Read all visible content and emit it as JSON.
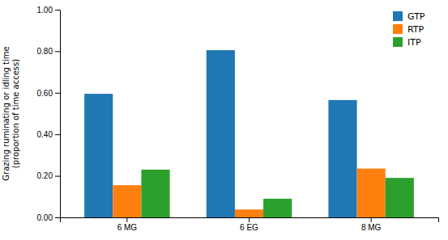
{
  "chart_data": {
    "type": "bar",
    "categories": [
      "6 MG",
      "6 EG",
      "8 MG"
    ],
    "series": [
      {
        "name": "GTP",
        "values": [
          0.595,
          0.805,
          0.565
        ]
      },
      {
        "name": "RTP",
        "values": [
          0.155,
          0.038,
          0.235
        ]
      },
      {
        "name": "ITP",
        "values": [
          0.23,
          0.09,
          0.19
        ]
      }
    ],
    "ylabel": "Grazing ruminating or idling time\n(proportion of time  access)",
    "ylim": [
      0.0,
      1.0
    ],
    "yticks": [
      {
        "value": 0.0,
        "label": "0.00"
      },
      {
        "value": 0.2,
        "label": "0.20"
      },
      {
        "value": 0.4,
        "label": "0.40"
      },
      {
        "value": 0.6,
        "label": "0.60"
      },
      {
        "value": 0.8,
        "label": "0.80"
      },
      {
        "value": 1.0,
        "label": "1.00"
      }
    ],
    "grid": false,
    "legend": "upper right"
  }
}
